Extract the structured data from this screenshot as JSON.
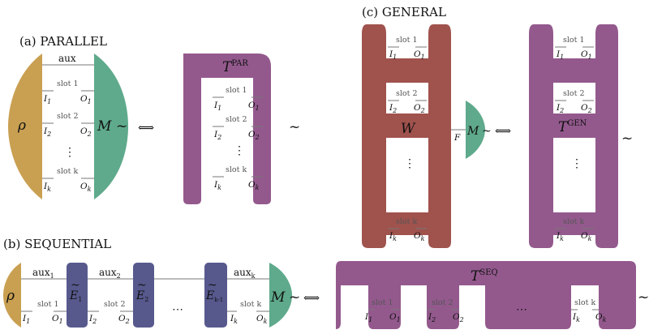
{
  "colors": {
    "rho": "#c9a052",
    "measurement": "#5faa8c",
    "tester": "#93598d",
    "channel": "#57598d",
    "general_w": "#a0524d"
  },
  "panels": {
    "parallel": {
      "label": "(a)  PARALLEL"
    },
    "sequential": {
      "label": "(b)  SEQUENTIAL"
    },
    "general": {
      "label": "(c)  GENERAL"
    }
  },
  "symbols": {
    "rho": "ρ",
    "M": "M",
    "tilde": "~",
    "iff": "⟺",
    "W": "W",
    "F": "F",
    "aux": "aux",
    "dots_v": "⋮",
    "dots_h": "⋯"
  },
  "slots": {
    "slot1": "slot 1",
    "slot2": "slot 2",
    "slotk": "slot k"
  },
  "io": {
    "I": "I",
    "O": "O",
    "sub1": "1",
    "sub2": "2",
    "subk": "k",
    "subkm1": "k-1"
  },
  "testers": {
    "par": {
      "base": "T",
      "sup": "PAR"
    },
    "gen": {
      "base": "T",
      "sup": "GEN"
    },
    "seq": {
      "base": "T",
      "sup": "SEQ"
    }
  },
  "channels": {
    "E": "E"
  }
}
